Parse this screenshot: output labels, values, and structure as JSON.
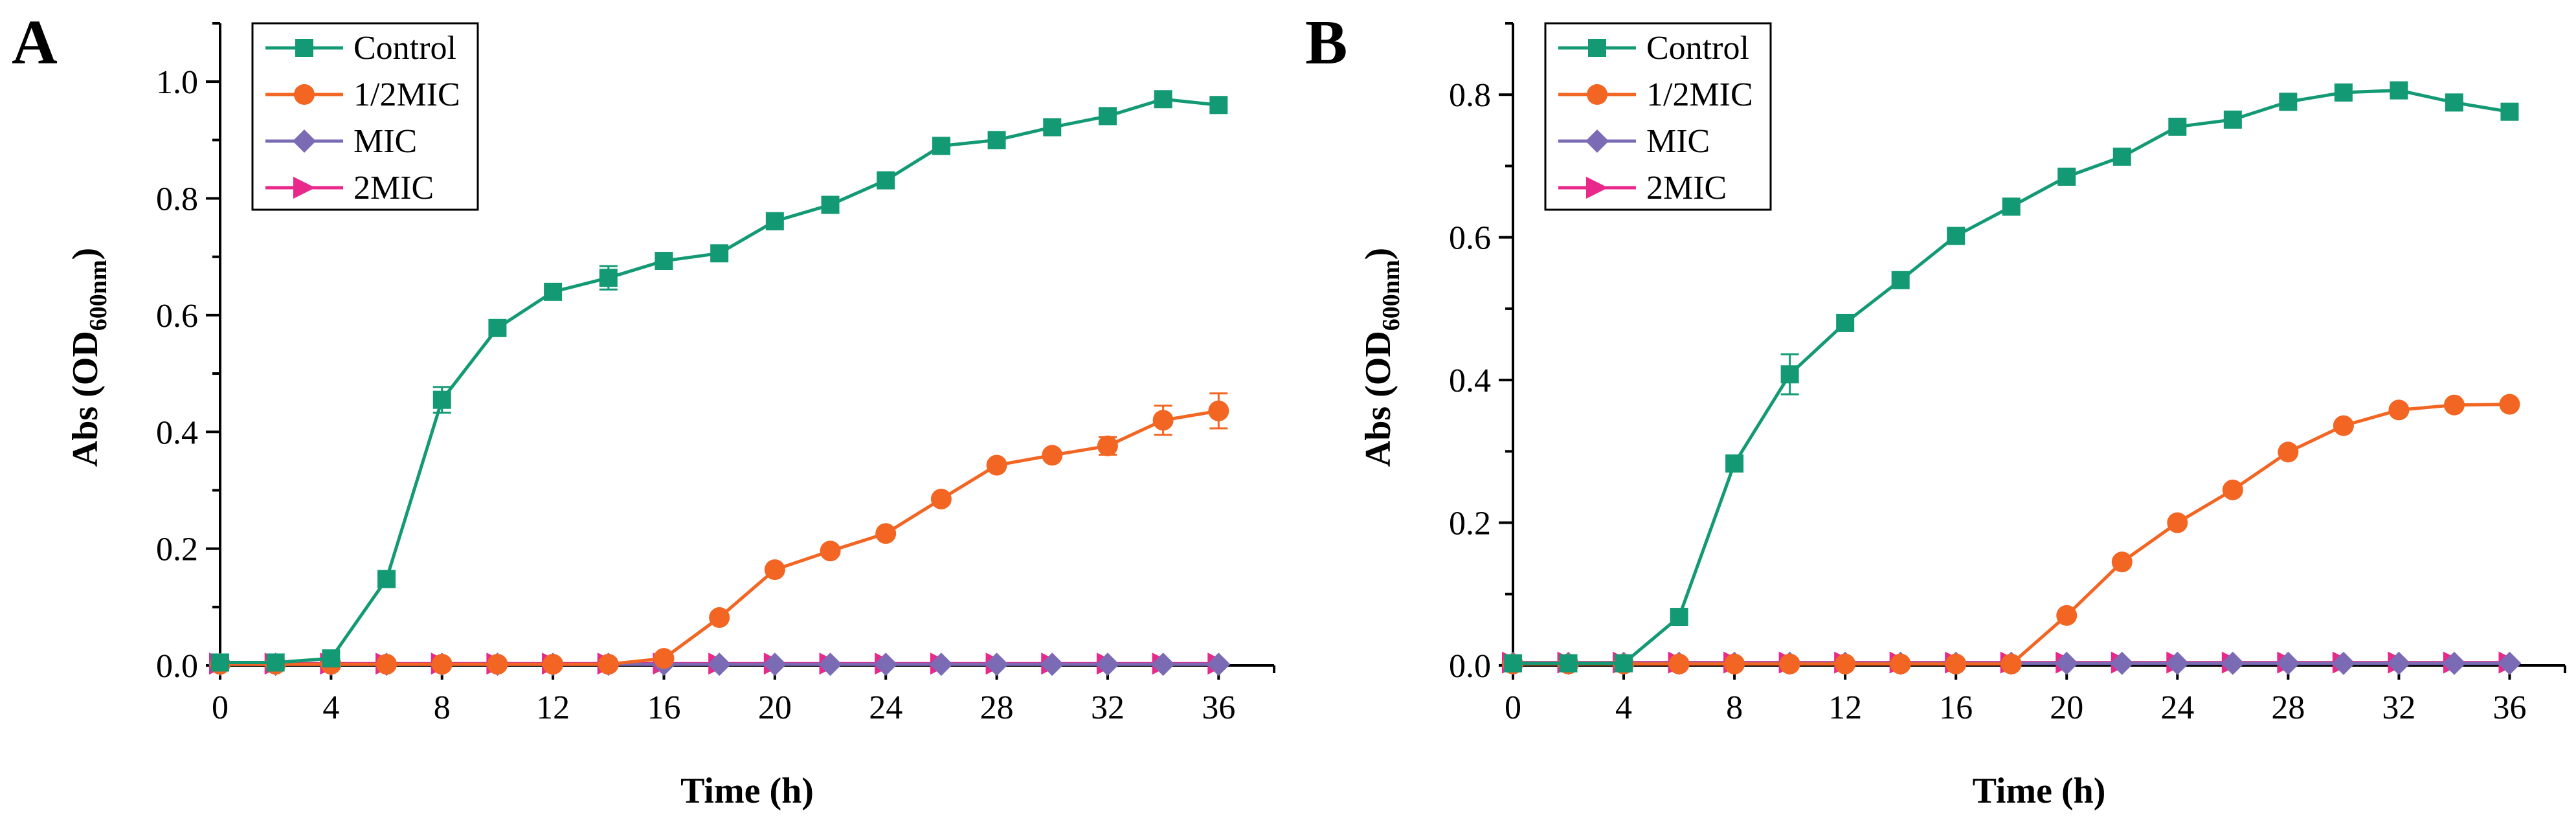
{
  "colors": {
    "Control": "#139a74",
    "1/2MIC": "#f26522",
    "MIC": "#7b6bb5",
    "2MIC": "#e8288a",
    "axis": "#000000"
  },
  "chart_data": [
    {
      "type": "line",
      "panel": "A",
      "xlabel": "Time (h)",
      "ylabel": {
        "prefix": "Abs (OD",
        "subscript": "600nm",
        "suffix": ")"
      },
      "xlim": [
        0,
        38
      ],
      "ylim": [
        0,
        1.1
      ],
      "xticks": [
        0,
        4,
        8,
        12,
        16,
        20,
        24,
        28,
        32,
        36
      ],
      "xtick_labels": [
        "0",
        "4",
        "8",
        "12",
        "16",
        "20",
        "24",
        "28",
        "32",
        "36"
      ],
      "yticks": [
        0.0,
        0.2,
        0.4,
        0.6,
        0.8,
        1.0
      ],
      "ytick_labels": [
        "0.0",
        "0.2",
        "0.4",
        "0.6",
        "0.8",
        "1.0"
      ],
      "legend_position": "top-left",
      "x": [
        0,
        2,
        4,
        6,
        8,
        10,
        12,
        14,
        16,
        18,
        20,
        22,
        24,
        26,
        28,
        30,
        32,
        34,
        36
      ],
      "series": [
        {
          "name": "Control",
          "marker": "square",
          "values": [
            0.005,
            0.005,
            0.012,
            0.148,
            0.455,
            0.578,
            0.64,
            0.664,
            0.693,
            0.706,
            0.761,
            0.789,
            0.831,
            0.89,
            0.9,
            0.922,
            0.941,
            0.97,
            0.96
          ],
          "errors": [
            0,
            0,
            0,
            0,
            0.022,
            0,
            0,
            0.02,
            0,
            0,
            0,
            0,
            0,
            0,
            0,
            0,
            0,
            0,
            0
          ]
        },
        {
          "name": "1/2MIC",
          "marker": "circle",
          "values": [
            0.002,
            0.002,
            0.002,
            0.002,
            0.002,
            0.002,
            0.002,
            0.002,
            0.012,
            0.082,
            0.164,
            0.196,
            0.226,
            0.285,
            0.343,
            0.36,
            0.376,
            0.42,
            0.436
          ],
          "errors": [
            0,
            0,
            0,
            0,
            0,
            0,
            0,
            0,
            0,
            0,
            0,
            0,
            0,
            0,
            0,
            0,
            0.015,
            0.025,
            0.03
          ]
        },
        {
          "name": "MIC",
          "marker": "diamond",
          "values": [
            0.002,
            0.002,
            0.002,
            0.002,
            0.002,
            0.002,
            0.002,
            0.002,
            0.002,
            0.002,
            0.002,
            0.002,
            0.002,
            0.002,
            0.002,
            0.002,
            0.002,
            0.002,
            0.002
          ],
          "errors": []
        },
        {
          "name": "2MIC",
          "marker": "triangle-right",
          "values": [
            0.003,
            0.003,
            0.003,
            0.003,
            0.003,
            0.003,
            0.003,
            0.003,
            0.003,
            0.003,
            0.003,
            0.003,
            0.003,
            0.003,
            0.003,
            0.003,
            0.003,
            0.003,
            0.003
          ],
          "errors": []
        }
      ]
    },
    {
      "type": "line",
      "panel": "B",
      "xlabel": "Time (h)",
      "ylabel": {
        "prefix": "Abs (OD",
        "subscript": "600nm",
        "suffix": ")"
      },
      "xlim": [
        0,
        38
      ],
      "ylim": [
        0,
        0.9
      ],
      "xticks": [
        0,
        4,
        8,
        12,
        16,
        20,
        24,
        28,
        32,
        36
      ],
      "xtick_labels": [
        "0",
        "4",
        "8",
        "12",
        "16",
        "20",
        "24",
        "28",
        "32",
        "36"
      ],
      "yticks": [
        0.0,
        0.2,
        0.4,
        0.6,
        0.8
      ],
      "ytick_labels": [
        "0.0",
        "0.2",
        "0.4",
        "0.6",
        "0.8"
      ],
      "legend_position": "top-left",
      "x": [
        0,
        2,
        4,
        6,
        8,
        10,
        12,
        14,
        16,
        18,
        20,
        22,
        24,
        26,
        28,
        30,
        32,
        34,
        36
      ],
      "series": [
        {
          "name": "Control",
          "marker": "square",
          "values": [
            0.003,
            0.003,
            0.003,
            0.068,
            0.283,
            0.408,
            0.48,
            0.54,
            0.602,
            0.643,
            0.685,
            0.713,
            0.755,
            0.765,
            0.79,
            0.803,
            0.806,
            0.789,
            0.776
          ],
          "errors": [
            0,
            0,
            0,
            0,
            0,
            0.028,
            0,
            0,
            0.01,
            0,
            0,
            0,
            0,
            0,
            0,
            0,
            0,
            0,
            0
          ]
        },
        {
          "name": "1/2MIC",
          "marker": "circle",
          "values": [
            0.002,
            0.002,
            0.002,
            0.002,
            0.002,
            0.002,
            0.002,
            0.002,
            0.002,
            0.002,
            0.07,
            0.145,
            0.2,
            0.246,
            0.299,
            0.336,
            0.358,
            0.365,
            0.366
          ],
          "errors": []
        },
        {
          "name": "MIC",
          "marker": "diamond",
          "values": [
            0.003,
            0.003,
            0.003,
            0.003,
            0.003,
            0.003,
            0.003,
            0.003,
            0.003,
            0.003,
            0.003,
            0.003,
            0.003,
            0.003,
            0.003,
            0.003,
            0.003,
            0.003,
            0.003
          ],
          "errors": []
        },
        {
          "name": "2MIC",
          "marker": "triangle-right",
          "values": [
            0.004,
            0.004,
            0.004,
            0.004,
            0.004,
            0.004,
            0.004,
            0.004,
            0.004,
            0.004,
            0.004,
            0.004,
            0.004,
            0.004,
            0.004,
            0.004,
            0.004,
            0.004,
            0.004
          ],
          "errors": []
        }
      ]
    }
  ]
}
